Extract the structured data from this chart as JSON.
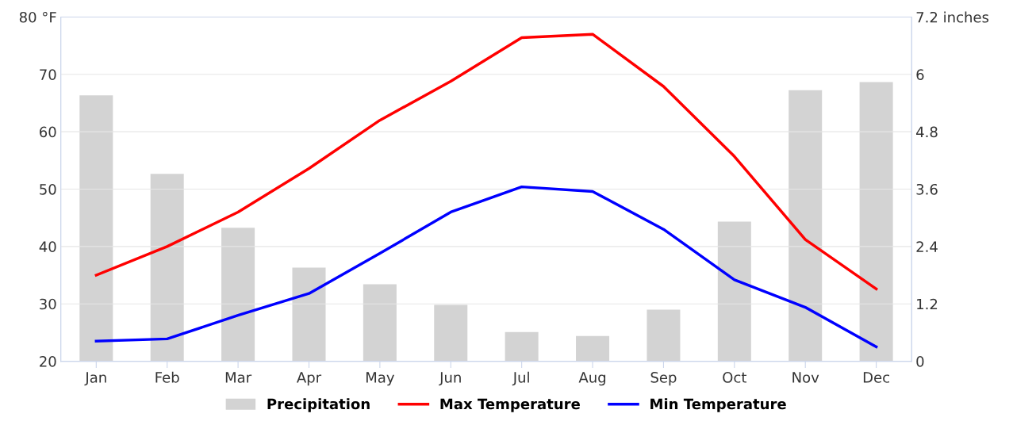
{
  "chart_data": {
    "type": "line",
    "categories": [
      "Jan",
      "Feb",
      "Mar",
      "Apr",
      "May",
      "Jun",
      "Jul",
      "Aug",
      "Sep",
      "Oct",
      "Nov",
      "Dec"
    ],
    "series": [
      {
        "name": "Precipitation",
        "type": "bar",
        "axis": "y2",
        "color": "#d3d3d3",
        "values": [
          5.56,
          3.92,
          2.79,
          1.96,
          1.61,
          1.18,
          0.61,
          0.53,
          1.08,
          2.92,
          5.67,
          5.84
        ]
      },
      {
        "name": "Max Temperature",
        "color": "#ff0000",
        "values": [
          35,
          40,
          46,
          53.6,
          62,
          68.8,
          76.4,
          77,
          67.9,
          55.7,
          41.2,
          32.6
        ]
      },
      {
        "name": "Min Temperature",
        "color": "#0000ff",
        "values": [
          23.5,
          23.9,
          28,
          31.8,
          38.8,
          46,
          50.4,
          49.6,
          43,
          34.2,
          29.4,
          22.5
        ]
      }
    ],
    "ylim": [
      20,
      80
    ],
    "yticks": [
      20,
      30,
      40,
      50,
      60,
      70,
      {
        "value": 80,
        "label": "80 °F"
      }
    ],
    "y2lim": [
      0,
      7.2
    ],
    "y2ticks": [
      0,
      1.2,
      2.4,
      3.6,
      4.8,
      6,
      {
        "value": 7.2,
        "label": "7.2 inches"
      }
    ],
    "grid": "y",
    "legend": "bottom",
    "marker": "none",
    "line_style": "solid"
  }
}
